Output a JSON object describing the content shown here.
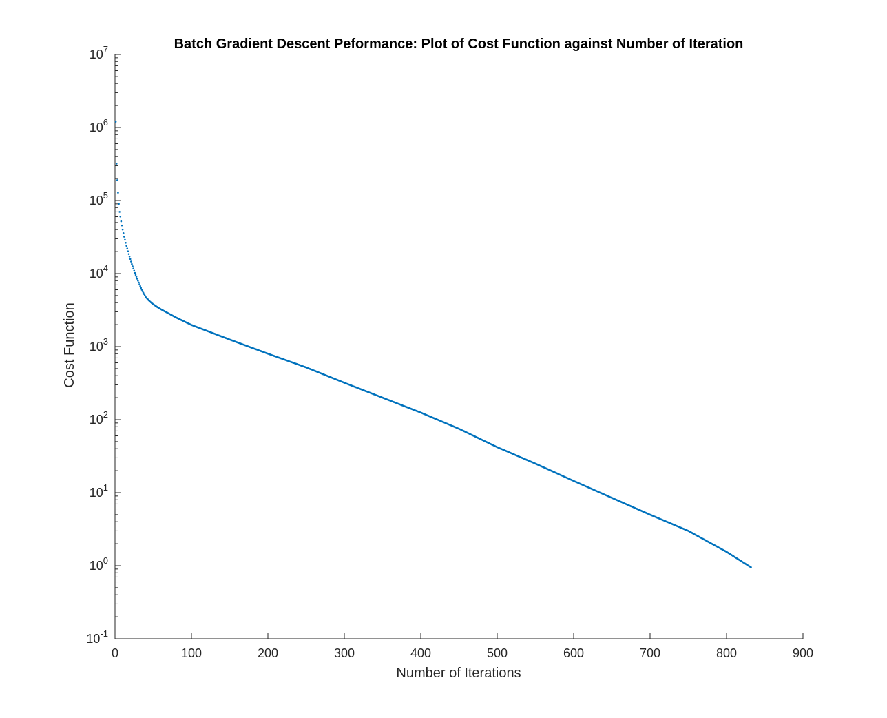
{
  "chart_data": {
    "type": "scatter",
    "title": "Batch Gradient Descent Peformance: Plot of Cost Function against Number of Iteration",
    "xlabel": "Number of Iterations",
    "ylabel": "Cost Function",
    "xlim": [
      0,
      900
    ],
    "ylim": [
      0.1,
      10000000
    ],
    "yscale": "log",
    "grid": false,
    "x_ticks": [
      0,
      100,
      200,
      300,
      400,
      500,
      600,
      700,
      800,
      900
    ],
    "x_tick_labels": [
      "0",
      "100",
      "200",
      "300",
      "400",
      "500",
      "600",
      "700",
      "800",
      "900"
    ],
    "y_tick_exponents": [
      -1,
      0,
      1,
      2,
      3,
      4,
      5,
      6,
      7
    ],
    "y_tick_base": "10",
    "marker_color": "#0072BD",
    "series": [
      {
        "x": [
          1,
          2,
          3,
          4,
          5,
          6,
          8,
          10,
          12,
          15,
          18,
          22,
          26,
          30,
          35,
          40,
          45,
          50,
          55,
          60,
          70,
          80,
          100,
          150,
          200,
          250,
          300,
          350,
          400,
          450,
          500,
          550,
          600,
          650,
          700,
          750,
          800,
          832
        ],
        "y": [
          1200000,
          320000,
          190000,
          128000,
          90000,
          70000,
          52000,
          40000,
          32000,
          24000,
          18500,
          13500,
          10200,
          8000,
          6000,
          4800,
          4200,
          3800,
          3500,
          3250,
          2850,
          2500,
          1980,
          1250,
          800,
          520,
          320,
          200,
          125,
          75,
          42,
          25,
          14.5,
          8.5,
          5,
          3,
          1.55,
          0.95
        ]
      }
    ]
  }
}
